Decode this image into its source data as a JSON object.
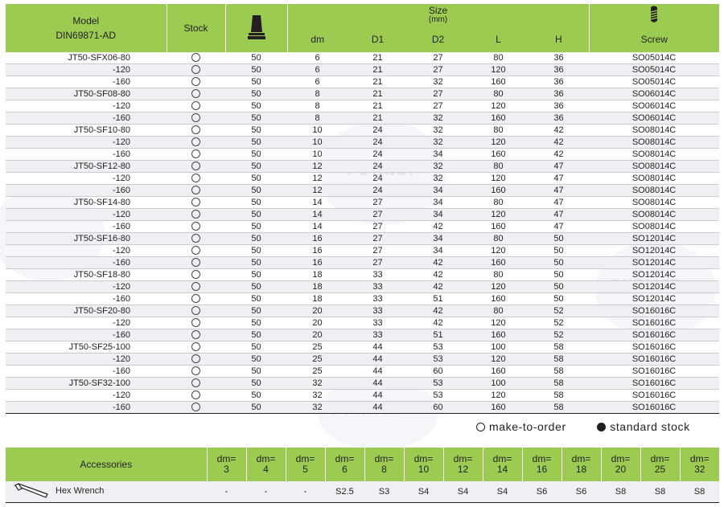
{
  "header": {
    "model": "Model",
    "model_sub": "DIN69871-AD",
    "stock": "Stock",
    "size": "Size",
    "size_unit": "(mm)",
    "dm": "dm",
    "d1": "D1",
    "d2": "D2",
    "l": "L",
    "h": "H",
    "screw": "Screw"
  },
  "rows": [
    [
      "JT50-SFX06-80",
      "50",
      "6",
      "21",
      "27",
      "80",
      "36",
      "SO05014C"
    ],
    [
      "-120",
      "50",
      "6",
      "21",
      "27",
      "120",
      "36",
      "SO05014C"
    ],
    [
      "-160",
      "50",
      "6",
      "21",
      "32",
      "160",
      "36",
      "SO05014C"
    ],
    [
      "JT50-SF08-80",
      "50",
      "8",
      "21",
      "27",
      "80",
      "36",
      "SO06014C"
    ],
    [
      "-120",
      "50",
      "8",
      "21",
      "27",
      "120",
      "36",
      "SO06014C"
    ],
    [
      "-160",
      "50",
      "8",
      "21",
      "32",
      "160",
      "36",
      "SO06014C"
    ],
    [
      "JT50-SF10-80",
      "50",
      "10",
      "24",
      "32",
      "80",
      "42",
      "SO08014C"
    ],
    [
      "-120",
      "50",
      "10",
      "24",
      "32",
      "120",
      "42",
      "SO08014C"
    ],
    [
      "-160",
      "50",
      "10",
      "24",
      "34",
      "160",
      "42",
      "SO08014C"
    ],
    [
      "JT50-SF12-80",
      "50",
      "12",
      "24",
      "32",
      "80",
      "47",
      "SO08014C"
    ],
    [
      "-120",
      "50",
      "12",
      "24",
      "32",
      "120",
      "47",
      "SO08014C"
    ],
    [
      "-160",
      "50",
      "12",
      "24",
      "34",
      "160",
      "47",
      "SO08014C"
    ],
    [
      "JT50-SF14-80",
      "50",
      "14",
      "27",
      "34",
      "80",
      "47",
      "SO08014C"
    ],
    [
      "-120",
      "50",
      "14",
      "27",
      "34",
      "120",
      "47",
      "SO08014C"
    ],
    [
      "-160",
      "50",
      "14",
      "27",
      "42",
      "160",
      "47",
      "SO08014C"
    ],
    [
      "JT50-SF16-80",
      "50",
      "16",
      "27",
      "34",
      "80",
      "50",
      "SO12014C"
    ],
    [
      "-120",
      "50",
      "16",
      "27",
      "34",
      "120",
      "50",
      "SO12014C"
    ],
    [
      "-160",
      "50",
      "16",
      "27",
      "42",
      "160",
      "50",
      "SO12014C"
    ],
    [
      "JT50-SF18-80",
      "50",
      "18",
      "33",
      "42",
      "80",
      "50",
      "SO12014C"
    ],
    [
      "-120",
      "50",
      "18",
      "33",
      "42",
      "120",
      "50",
      "SO12014C"
    ],
    [
      "-160",
      "50",
      "18",
      "33",
      "51",
      "160",
      "50",
      "SO12014C"
    ],
    [
      "JT50-SF20-80",
      "50",
      "20",
      "33",
      "42",
      "80",
      "52",
      "SO16016C"
    ],
    [
      "-120",
      "50",
      "20",
      "33",
      "42",
      "120",
      "52",
      "SO16016C"
    ],
    [
      "-160",
      "50",
      "20",
      "33",
      "51",
      "160",
      "52",
      "SO16016C"
    ],
    [
      "JT50-SF25-100",
      "50",
      "25",
      "44",
      "53",
      "100",
      "58",
      "SO16016C"
    ],
    [
      "-120",
      "50",
      "25",
      "44",
      "53",
      "120",
      "58",
      "SO16016C"
    ],
    [
      "-160",
      "50",
      "25",
      "44",
      "60",
      "160",
      "58",
      "SO16016C"
    ],
    [
      "JT50-SF32-100",
      "50",
      "32",
      "44",
      "53",
      "100",
      "58",
      "SO16016C"
    ],
    [
      "-120",
      "50",
      "32",
      "44",
      "53",
      "120",
      "58",
      "SO16016C"
    ],
    [
      "-160",
      "50",
      "32",
      "44",
      "60",
      "160",
      "58",
      "SO16016C"
    ]
  ],
  "legend": {
    "make_to_order": "make-to-order",
    "standard_stock": "standard stock"
  },
  "accessories": {
    "label": "Accessories",
    "columns": [
      [
        "dm=",
        "3"
      ],
      [
        "dm=",
        "4"
      ],
      [
        "dm=",
        "5"
      ],
      [
        "dm=",
        "6"
      ],
      [
        "dm=",
        "8"
      ],
      [
        "dm=",
        "10"
      ],
      [
        "dm=",
        "12"
      ],
      [
        "dm=",
        "14"
      ],
      [
        "dm=",
        "16"
      ],
      [
        "dm=",
        "18"
      ],
      [
        "dm=",
        "20"
      ],
      [
        "dm=",
        "25"
      ],
      [
        "dm=",
        "32"
      ]
    ],
    "wrench_label": "Hex Wrench",
    "wrench_values": [
      "-",
      "-",
      "-",
      "S2.5",
      "S3",
      "S4",
      "S4",
      "S4",
      "S6",
      "S6",
      "S8",
      "S8",
      "S8"
    ]
  },
  "watermark": "PUTAICT",
  "icons": {
    "holder": "tool-holder-icon",
    "screw": "screw-icon",
    "wrench": "hex-wrench-icon"
  },
  "colors": {
    "header_green": "#9ccb52",
    "row_stripe": "#eef0f3",
    "text": "#231f20"
  }
}
